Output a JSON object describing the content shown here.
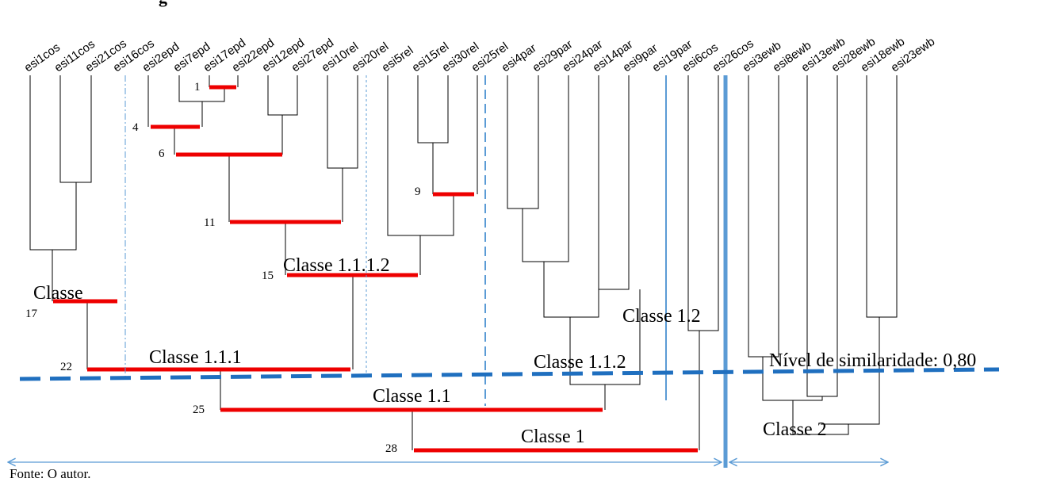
{
  "figure": {
    "title_fragment": "g",
    "source": "Fonte: O autor.",
    "similarity_label": "Nível de similaridade: 0,80"
  },
  "leaves": [
    "esi1cos",
    "esi11cos",
    "esi21cos",
    "esi16cos",
    "esi2epd",
    "esi7epd",
    "esi17epd",
    "esi22epd",
    "esi12epd",
    "esi27epd",
    "esi10rel",
    "esi20rel",
    "esi5rel",
    "esi15rel",
    "esi30rel",
    "esi25rel",
    "esi4par",
    "esi29par",
    "esi24par",
    "esi14par",
    "esi9par",
    "esi19par",
    "esi6cos",
    "esi26cos",
    "esi3ewb",
    "esi8ewb",
    "esi13ewb",
    "esi28ewb",
    "esi18ewb",
    "esi23ewb"
  ],
  "merge_labels": [
    "1",
    "4",
    "6",
    "9",
    "11",
    "15",
    "17",
    "22",
    "25",
    "28"
  ],
  "classes": [
    "Classe",
    "Classe 1.1.1",
    "Classe 1.1.1.2",
    "Classe 1.1.2",
    "Classe 1.1",
    "Classe 1.2",
    "Classe 1",
    "Classe 2"
  ],
  "colors": {
    "merge_bar": "#ee0000",
    "similarity_line": "#1f6fbf",
    "divider": "#5b9bd5"
  }
}
